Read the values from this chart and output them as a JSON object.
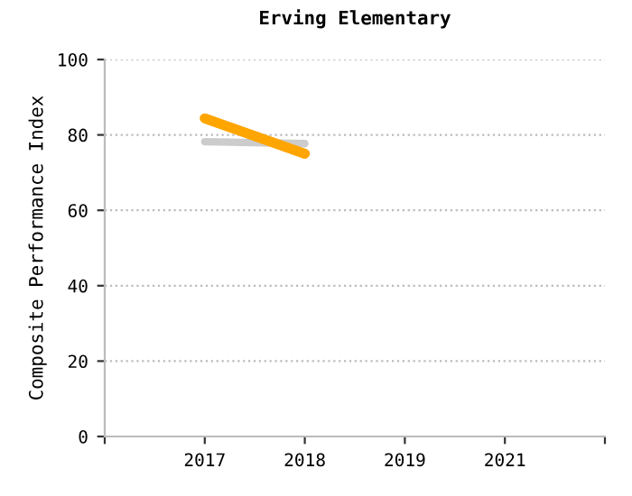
{
  "chart_data": {
    "type": "line",
    "title": "Erving Elementary",
    "ylabel": "Composite Performance Index",
    "categories": [
      null,
      "2017",
      "2018",
      "2019",
      "2021",
      null
    ],
    "series": [
      {
        "color": "#cccccc",
        "values": [
          null,
          78.2,
          77.7,
          null,
          null,
          null
        ]
      },
      {
        "color": "#ffa500",
        "values": [
          null,
          84.4,
          75,
          null,
          null,
          null
        ]
      }
    ],
    "ylim": [
      0,
      100
    ],
    "yticks": [
      0,
      20,
      40,
      60,
      80,
      100
    ],
    "grid": "y",
    "legend": false,
    "marker": "none",
    "line_style": "solid"
  }
}
